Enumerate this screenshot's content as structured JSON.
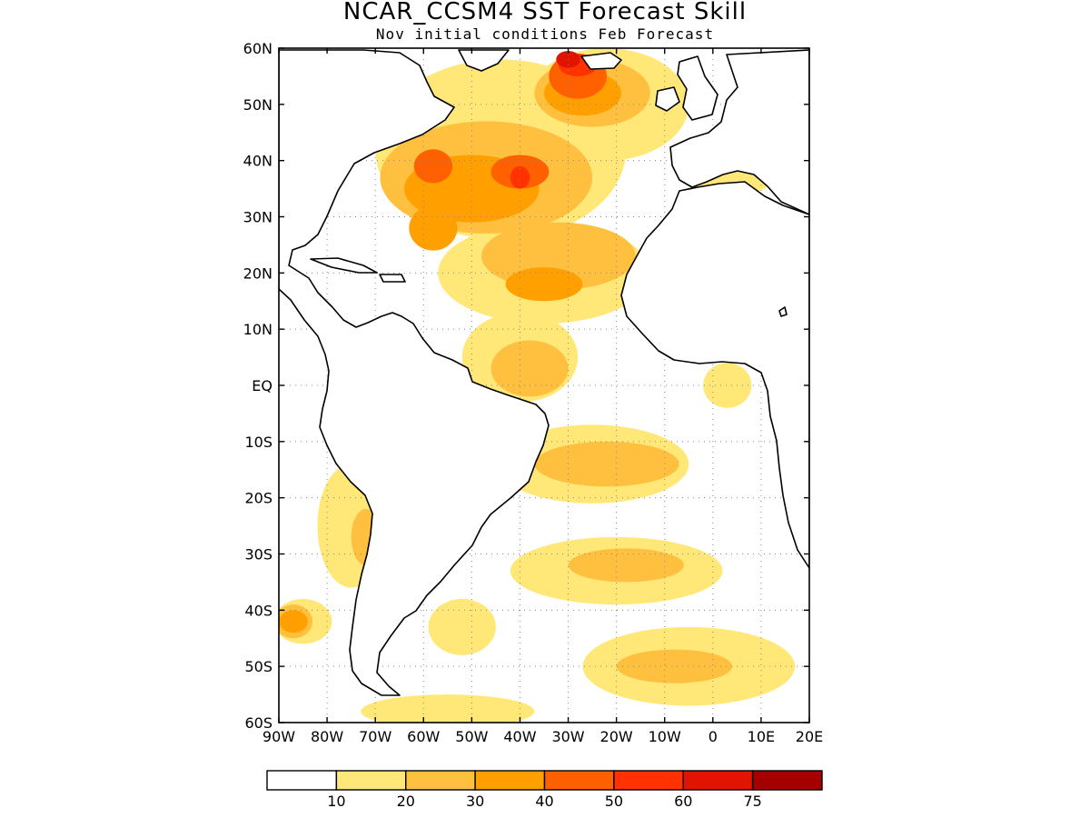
{
  "title": "NCAR_CCSM4 SST Forecast Skill",
  "subtitle": "Nov initial conditions  Feb Forecast",
  "map": {
    "lon_range": [
      -90,
      20
    ],
    "lat_range": [
      -60,
      60
    ],
    "grid": true,
    "lat_ticks": [
      {
        "value": 60,
        "label": "60N"
      },
      {
        "value": 50,
        "label": "50N"
      },
      {
        "value": 40,
        "label": "40N"
      },
      {
        "value": 30,
        "label": "30N"
      },
      {
        "value": 20,
        "label": "20N"
      },
      {
        "value": 10,
        "label": "10N"
      },
      {
        "value": 0,
        "label": "EQ"
      },
      {
        "value": -10,
        "label": "10S"
      },
      {
        "value": -20,
        "label": "20S"
      },
      {
        "value": -30,
        "label": "30S"
      },
      {
        "value": -40,
        "label": "40S"
      },
      {
        "value": -50,
        "label": "50S"
      },
      {
        "value": -60,
        "label": "60S"
      }
    ],
    "lon_ticks": [
      {
        "value": -90,
        "label": "90W"
      },
      {
        "value": -80,
        "label": "80W"
      },
      {
        "value": -70,
        "label": "70W"
      },
      {
        "value": -60,
        "label": "60W"
      },
      {
        "value": -50,
        "label": "50W"
      },
      {
        "value": -40,
        "label": "40W"
      },
      {
        "value": -30,
        "label": "30W"
      },
      {
        "value": -20,
        "label": "20W"
      },
      {
        "value": -10,
        "label": "10W"
      },
      {
        "value": 0,
        "label": "0"
      },
      {
        "value": 10,
        "label": "10E"
      },
      {
        "value": 20,
        "label": "20E"
      }
    ]
  },
  "colorbar": {
    "colors": [
      "#ffffff",
      "#ffe878",
      "#ffc040",
      "#ffa000",
      "#ff6000",
      "#ff3200",
      "#e11400",
      "#a50000"
    ],
    "labels": [
      "10",
      "20",
      "30",
      "40",
      "50",
      "60",
      "75"
    ]
  },
  "skill_regions": [
    {
      "level": 1,
      "lon": -44,
      "lat": 42,
      "rx": 26,
      "ry": 16
    },
    {
      "level": 1,
      "lon": -22,
      "lat": 50,
      "rx": 17,
      "ry": 10
    },
    {
      "level": 1,
      "lon": -35,
      "lat": 20,
      "rx": 22,
      "ry": 9
    },
    {
      "level": 1,
      "lon": -40,
      "lat": 5,
      "rx": 12,
      "ry": 8
    },
    {
      "level": 1,
      "lon": -25,
      "lat": -14,
      "rx": 20,
      "ry": 7
    },
    {
      "level": 1,
      "lon": -20,
      "lat": -33,
      "rx": 22,
      "ry": 6
    },
    {
      "level": 1,
      "lon": -5,
      "lat": -50,
      "rx": 22,
      "ry": 7
    },
    {
      "level": 1,
      "lon": -75,
      "lat": -25,
      "rx": 7,
      "ry": 11
    },
    {
      "level": 1,
      "lon": -85,
      "lat": -42,
      "rx": 6,
      "ry": 4
    },
    {
      "level": 1,
      "lon": -52,
      "lat": -43,
      "rx": 7,
      "ry": 5
    },
    {
      "level": 1,
      "lon": -55,
      "lat": -58,
      "rx": 18,
      "ry": 3
    },
    {
      "level": 1,
      "lon": 4,
      "lat": 38,
      "rx": 10,
      "ry": 4
    },
    {
      "level": 1,
      "lon": 3,
      "lat": 0,
      "rx": 5,
      "ry": 4
    },
    {
      "level": 2,
      "lon": -47,
      "lat": 37,
      "rx": 22,
      "ry": 10
    },
    {
      "level": 2,
      "lon": -25,
      "lat": 52,
      "rx": 12,
      "ry": 6
    },
    {
      "level": 2,
      "lon": -32,
      "lat": 23,
      "rx": 16,
      "ry": 6
    },
    {
      "level": 2,
      "lon": -38,
      "lat": 3,
      "rx": 8,
      "ry": 5
    },
    {
      "level": 2,
      "lon": -22,
      "lat": -14,
      "rx": 15,
      "ry": 4
    },
    {
      "level": 2,
      "lon": -18,
      "lat": -32,
      "rx": 12,
      "ry": 3
    },
    {
      "level": 2,
      "lon": -8,
      "lat": -50,
      "rx": 12,
      "ry": 3
    },
    {
      "level": 2,
      "lon": -72,
      "lat": -27,
      "rx": 3,
      "ry": 5
    },
    {
      "level": 2,
      "lon": -87,
      "lat": -42,
      "rx": 4,
      "ry": 3
    },
    {
      "level": 3,
      "lon": -50,
      "lat": 35,
      "rx": 14,
      "ry": 6
    },
    {
      "level": 3,
      "lon": -27,
      "lat": 52,
      "rx": 8,
      "ry": 4
    },
    {
      "level": 3,
      "lon": -58,
      "lat": 28,
      "rx": 5,
      "ry": 4
    },
    {
      "level": 3,
      "lon": -35,
      "lat": 18,
      "rx": 8,
      "ry": 3
    },
    {
      "level": 3,
      "lon": -87,
      "lat": -42,
      "rx": 3,
      "ry": 2
    },
    {
      "level": 4,
      "lon": -40,
      "lat": 38,
      "rx": 6,
      "ry": 3
    },
    {
      "level": 4,
      "lon": -28,
      "lat": 55,
      "rx": 6,
      "ry": 4
    },
    {
      "level": 4,
      "lon": -58,
      "lat": 39,
      "rx": 4,
      "ry": 3
    },
    {
      "level": 5,
      "lon": -28,
      "lat": 57,
      "rx": 4,
      "ry": 2
    },
    {
      "level": 5,
      "lon": -40,
      "lat": 37,
      "rx": 2,
      "ry": 2
    },
    {
      "level": 6,
      "lon": -30,
      "lat": 58,
      "rx": 2.5,
      "ry": 1.5
    }
  ]
}
